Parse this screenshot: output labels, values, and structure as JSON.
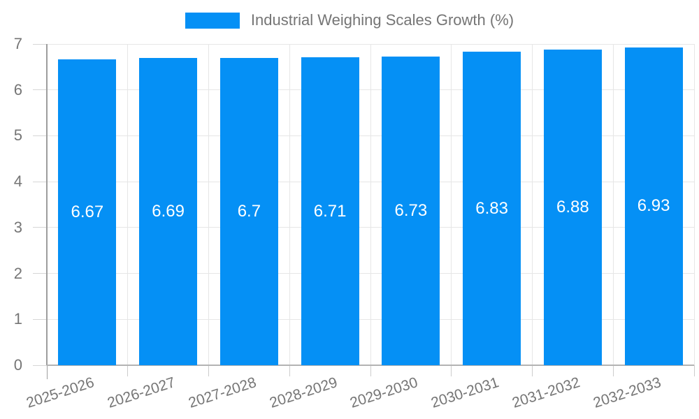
{
  "chart_data": {
    "type": "bar",
    "title": "Industrial Weighing Scales Growth (%)",
    "legend_position": "top",
    "grid": true,
    "categories": [
      "2025-2026",
      "2026-2027",
      "2027-2028",
      "2028-2029",
      "2029-2030",
      "2030-2031",
      "2031-2032",
      "2032-2033"
    ],
    "values": [
      6.67,
      6.69,
      6.7,
      6.71,
      6.73,
      6.83,
      6.88,
      6.93
    ],
    "value_labels": [
      "6.67",
      "6.69",
      "6.7",
      "6.71",
      "6.73",
      "6.83",
      "6.88",
      "6.93"
    ],
    "xlabel": "",
    "ylabel": "",
    "ylim": [
      0,
      7
    ],
    "ytick_labels": [
      "0",
      "1",
      "2",
      "3",
      "4",
      "5",
      "6",
      "7"
    ],
    "colors": {
      "bar": "#0590f5",
      "bar_value_text": "#ffffff",
      "axis_text": "#757575",
      "gridline": "#e6e6e6",
      "y_axis_line": "#9e9e9e",
      "x_axis_line": "#b3b3b3"
    }
  }
}
